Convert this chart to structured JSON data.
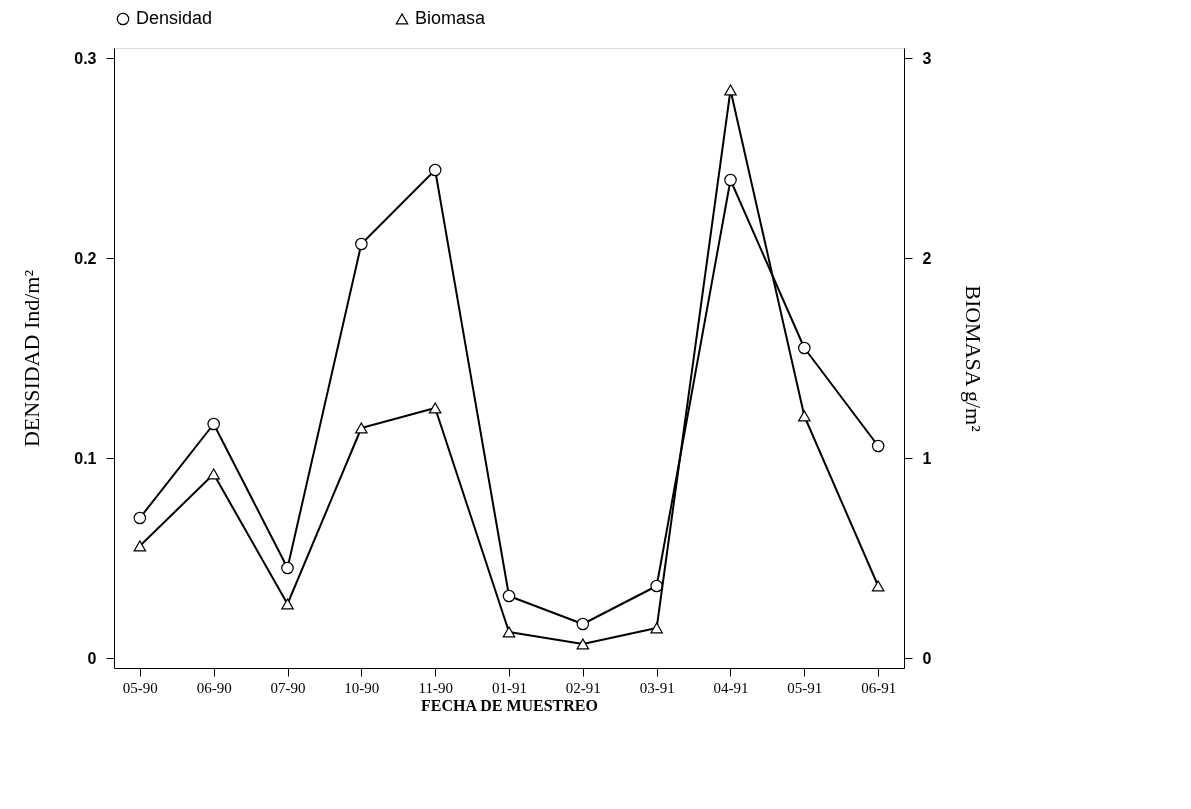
{
  "chart_data": {
    "type": "line",
    "xlabel": "FECHA DE MUESTREO",
    "ylabel": "DENSIDAD Ind/m²",
    "y2label": "BIOMASA g/m²",
    "categories": [
      "05-90",
      "06-90",
      "07-90",
      "10-90",
      "11-90",
      "01-91",
      "02-91",
      "03-91",
      "04-91",
      "05-91",
      "06-91"
    ],
    "series": [
      {
        "name": "Densidad",
        "color": "#000000",
        "marker": "circle",
        "values": [
          0.07,
          0.117,
          0.045,
          0.207,
          0.244,
          0.031,
          0.017,
          0.036,
          0.239,
          0.155,
          0.106
        ]
      },
      {
        "name": "Biomasa",
        "color": "#000000",
        "marker": "triangle",
        "axis": "y2",
        "values": [
          0.56,
          0.92,
          0.27,
          1.15,
          1.25,
          0.13,
          0.07,
          0.15,
          2.84,
          1.21,
          0.36
        ]
      }
    ],
    "ylim": [
      -0.005,
      0.305
    ],
    "yticks": [
      0,
      0.1,
      0.2,
      0.3
    ],
    "y2lim": [
      -0.05,
      3.05
    ],
    "y2ticks": [
      0,
      1,
      2,
      3
    ],
    "grid": false,
    "legend": "top",
    "line_style": "solid"
  }
}
